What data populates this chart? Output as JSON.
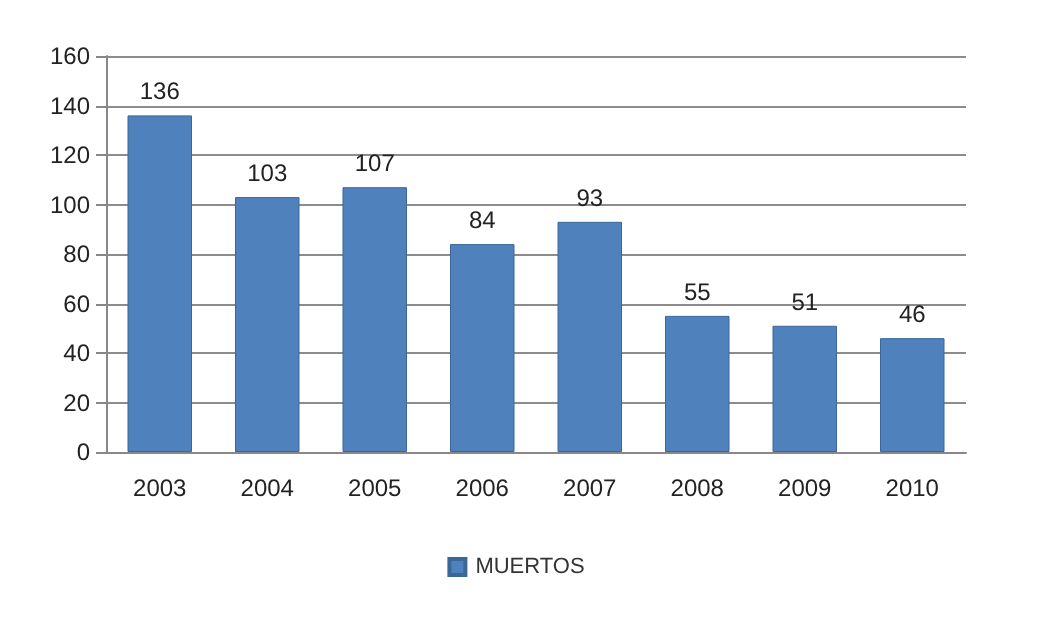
{
  "chart_data": {
    "type": "bar",
    "categories": [
      "2003",
      "2004",
      "2005",
      "2006",
      "2007",
      "2008",
      "2009",
      "2010"
    ],
    "series": [
      {
        "name": "MUERTOS",
        "color": "#4f81bd",
        "values": [
          136,
          103,
          107,
          84,
          93,
          55,
          51,
          46
        ]
      }
    ],
    "ylim": [
      0,
      160
    ],
    "yticks": [
      0,
      20,
      40,
      60,
      80,
      100,
      120,
      140,
      160
    ],
    "grid": "y",
    "legend": "bottom",
    "data_labels": true
  }
}
